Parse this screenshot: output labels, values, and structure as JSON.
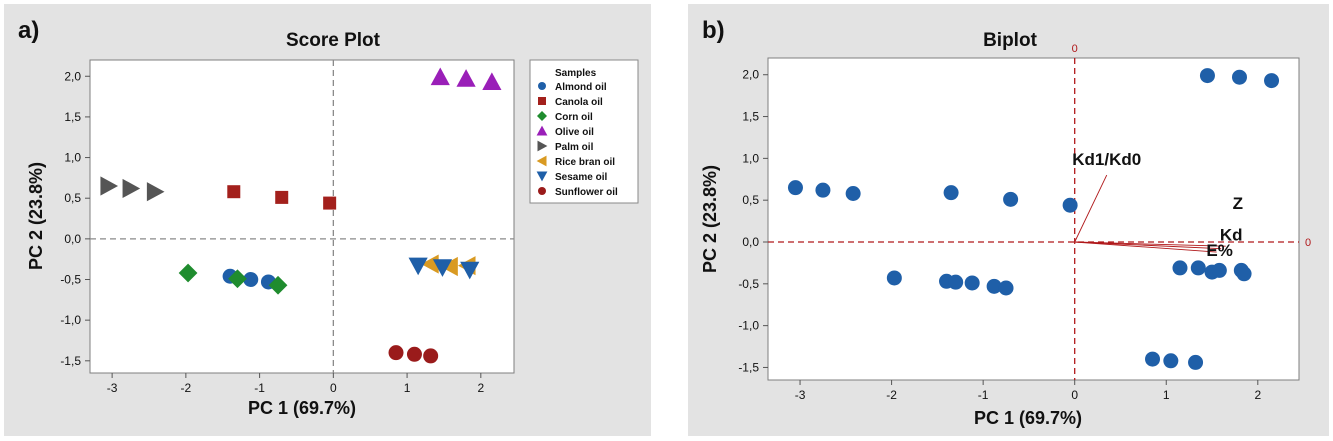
{
  "panels": {
    "a_letter": "a)",
    "b_letter": "b)"
  },
  "colors": {
    "Almond oil": "#1f5fa8",
    "Canola oil": "#a3201c",
    "Corn oil": "#1f8c2e",
    "Olive oil": "#9a1fb8",
    "Palm oil": "#555555",
    "Rice bran oil": "#d99a22",
    "Sesame oil": "#1f5fa8",
    "Sunflower oil": "#9a1b1b",
    "biplot_point": "#1f5fa8",
    "ref_line": "#b0181a"
  },
  "chart_data": [
    {
      "type": "scatter",
      "title": "Score Plot",
      "xlabel": "PC 1 (69.7%)",
      "ylabel": "PC 2 (23.8%)",
      "xlim": [
        -3.3,
        2.45
      ],
      "ylim": [
        -1.65,
        2.2
      ],
      "xticks": [
        -3,
        -2,
        -1,
        0,
        1,
        2
      ],
      "yticks": [
        -1.5,
        -1.0,
        -0.5,
        0.0,
        0.5,
        1.0,
        1.5,
        2.0
      ],
      "ytick_labels": [
        "-1,5",
        "-1,0",
        "-0,5",
        "0,0",
        "0,5",
        "1,0",
        "1,5",
        "2,0"
      ],
      "reference_lines": {
        "x": 0,
        "y": 0,
        "style": "dashed"
      },
      "legend_title": "Samples",
      "legend_position": "right",
      "series": [
        {
          "name": "Almond oil",
          "marker": "circle",
          "x": [
            -1.4,
            -1.12,
            -0.88
          ],
          "y": [
            -0.46,
            -0.5,
            -0.53
          ]
        },
        {
          "name": "Canola oil",
          "marker": "square",
          "x": [
            -1.35,
            -0.7,
            -0.05
          ],
          "y": [
            0.58,
            0.51,
            0.44
          ]
        },
        {
          "name": "Corn oil",
          "marker": "diamond",
          "x": [
            -1.97,
            -1.3,
            -0.75
          ],
          "y": [
            -0.42,
            -0.49,
            -0.57
          ]
        },
        {
          "name": "Olive oil",
          "marker": "triangle-up",
          "x": [
            1.45,
            1.8,
            2.15
          ],
          "y": [
            1.99,
            1.97,
            1.93
          ]
        },
        {
          "name": "Palm oil",
          "marker": "triangle-right",
          "x": [
            -3.05,
            -2.75,
            -2.42
          ],
          "y": [
            0.65,
            0.62,
            0.58
          ]
        },
        {
          "name": "Rice bran oil",
          "marker": "triangle-left",
          "x": [
            1.32,
            1.58,
            1.82
          ],
          "y": [
            -0.31,
            -0.34,
            -0.33
          ]
        },
        {
          "name": "Sesame oil",
          "marker": "triangle-down",
          "x": [
            1.15,
            1.48,
            1.85
          ],
          "y": [
            -0.33,
            -0.35,
            -0.38
          ]
        },
        {
          "name": "Sunflower oil",
          "marker": "circle",
          "x": [
            0.85,
            1.1,
            1.32
          ],
          "y": [
            -1.4,
            -1.42,
            -1.44
          ]
        }
      ]
    },
    {
      "type": "scatter",
      "title": "Biplot",
      "xlabel": "PC 1 (69.7%)",
      "ylabel": "PC 2 (23.8%)",
      "xlim": [
        -3.35,
        2.45
      ],
      "ylim": [
        -1.65,
        2.2
      ],
      "xticks": [
        -3,
        -2,
        -1,
        0,
        1,
        2
      ],
      "yticks": [
        -1.5,
        -1.0,
        -0.5,
        0.0,
        0.5,
        1.0,
        1.5,
        2.0
      ],
      "ytick_labels": [
        "-1,5",
        "-1,0",
        "-0,5",
        "0,0",
        "0,5",
        "1,0",
        "1,5",
        "2,0"
      ],
      "reference_lines": {
        "x": 0,
        "y": 0,
        "style": "dashed",
        "label": "0"
      },
      "points": {
        "x": [
          -3.05,
          -2.75,
          -2.42,
          -1.35,
          -0.7,
          -0.05,
          1.45,
          1.8,
          2.15,
          -1.97,
          -1.4,
          -1.3,
          -1.12,
          -0.88,
          -0.75,
          1.15,
          1.35,
          1.5,
          1.58,
          1.82,
          1.85,
          0.85,
          1.05,
          1.32
        ],
        "y": [
          0.65,
          0.62,
          0.58,
          0.59,
          0.51,
          0.44,
          1.99,
          1.97,
          1.93,
          -0.43,
          -0.47,
          -0.48,
          -0.49,
          -0.53,
          -0.55,
          -0.31,
          -0.31,
          -0.36,
          -0.34,
          -0.34,
          -0.38,
          -1.4,
          -1.42,
          -1.44
        ]
      },
      "loadings": [
        {
          "name": "Kd1/Kd0",
          "x": 0.35,
          "y": 0.8
        },
        {
          "name": "Z",
          "x": 1.65,
          "y": -0.05
        },
        {
          "name": "Kd",
          "x": 1.6,
          "y": -0.08
        },
        {
          "name": "E%",
          "x": 1.55,
          "y": -0.12
        }
      ]
    }
  ]
}
